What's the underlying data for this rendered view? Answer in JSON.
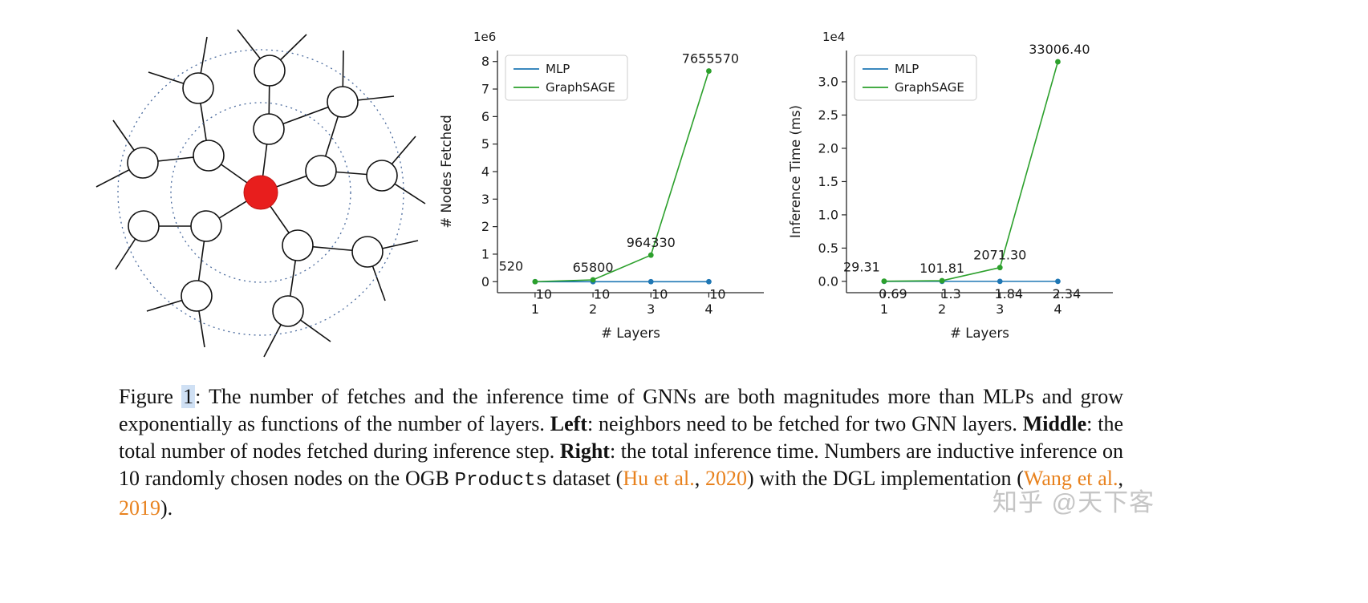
{
  "figure": {
    "watermark": "知乎 @天下客",
    "caption": {
      "seg_figure": "Figure ",
      "seg_fignum": "1",
      "seg_intro": ": The number of fetches and the inference time of GNNs are both magnitudes more than MLPs and grow exponentially as functions of the number of layers. ",
      "seg_left_label": "Left",
      "seg_left_text": ": neighbors need to be fetched for two GNN layers. ",
      "seg_middle_label": "Middle",
      "seg_middle_text": ": the total number of nodes fetched during inference step. ",
      "seg_right_label": "Right",
      "seg_right_text": ": the total inference time. Numbers are inductive inference on 10 randomly chosen nodes on the OGB ",
      "seg_products": "Products",
      "seg_dataset": " dataset (",
      "seg_cite1_author": "Hu et al.",
      "seg_cite1_sep": ", ",
      "seg_cite1_year": "2020",
      "seg_mid2": ") with the DGL implementation (",
      "seg_cite2_author": "Wang et al.",
      "seg_cite2_sep": ", ",
      "seg_cite2_year": "2019",
      "seg_end": ")."
    },
    "colors": {
      "mlp": "#1f77b4",
      "graphsage": "#2ca02c",
      "citation": "#e8821e",
      "fignum_highlight": "#cfe0f4",
      "watermark": "#c5c5c5",
      "center_node": "#e81e1d",
      "hop_circle": "#4a6a9d"
    },
    "diagram": {
      "description": "ego-graph showing a red target node whose 1-hop and 2-hop neighbors (dotted circles) must be fetched for two GNN layers",
      "hops": 2
    }
  },
  "chart_data": [
    {
      "type": "line",
      "offset_label": "1e6",
      "ylabel": "# Nodes Fetched",
      "xlabel": "# Layers",
      "x": [
        1,
        2,
        3,
        4
      ],
      "xticklabels": [
        "1",
        "2",
        "3",
        "4"
      ],
      "yticks": [
        0,
        1,
        2,
        3,
        4,
        5,
        6,
        7,
        8
      ],
      "ytick_labels": [
        "0",
        "1",
        "2",
        "3",
        "4",
        "5",
        "6",
        "7",
        "8"
      ],
      "ylim": [
        -0.4,
        8.4
      ],
      "xlim": [
        0.35,
        4.95
      ],
      "scale": 1000000,
      "grid": false,
      "legend_position": "upper left",
      "series": [
        {
          "name": "MLP",
          "color": "#1f77b4",
          "values": [
            10,
            10,
            10,
            10
          ],
          "point_labels": [
            "10",
            "10",
            "10",
            "10"
          ],
          "label_dx": [
            11,
            11,
            11,
            11
          ],
          "label_dy": [
            21,
            21,
            21,
            21
          ]
        },
        {
          "name": "GraphSAGE",
          "color": "#2ca02c",
          "values": [
            520,
            65800,
            964330,
            7655570
          ],
          "point_labels": [
            "520",
            "65800",
            "964330",
            "7655570"
          ],
          "label_dx": [
            -30,
            0,
            0,
            2
          ],
          "label_dy": [
            -14,
            -10,
            -10,
            -10
          ]
        }
      ]
    },
    {
      "type": "line",
      "offset_label": "1e4",
      "ylabel": "Inference Time (ms)",
      "xlabel": "# Layers",
      "x": [
        1,
        2,
        3,
        4
      ],
      "xticklabels": [
        "1",
        "2",
        "3",
        "4"
      ],
      "yticks": [
        0.0,
        0.5,
        1.0,
        1.5,
        2.0,
        2.5,
        3.0
      ],
      "ytick_labels": [
        "0.0",
        "0.5",
        "1.0",
        "1.5",
        "2.0",
        "2.5",
        "3.0"
      ],
      "ylim": [
        -0.17,
        3.47
      ],
      "xlim": [
        0.35,
        4.95
      ],
      "scale": 10000,
      "grid": false,
      "legend_position": "upper left",
      "series": [
        {
          "name": "MLP",
          "color": "#1f77b4",
          "values": [
            0.69,
            1.3,
            1.84,
            2.34
          ],
          "point_labels": [
            "0.69",
            "1.3",
            "1.84",
            "2.34"
          ],
          "label_dx": [
            11,
            11,
            11,
            11
          ],
          "label_dy": [
            21,
            21,
            21,
            21
          ]
        },
        {
          "name": "GraphSAGE",
          "color": "#2ca02c",
          "values": [
            29.31,
            101.81,
            2071.3,
            33006.4
          ],
          "point_labels": [
            "29.31",
            "101.81",
            "2071.30",
            "33006.40"
          ],
          "label_dx": [
            -28,
            0,
            0,
            2
          ],
          "label_dy": [
            -12,
            -10,
            -10,
            -10
          ]
        }
      ]
    }
  ]
}
